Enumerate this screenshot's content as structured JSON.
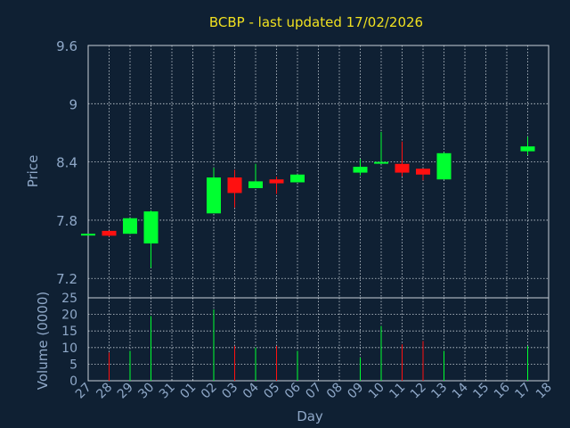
{
  "chart_data": {
    "type": "candlestick",
    "title": "BCBP - last updated 17/02/2026",
    "xlabel": "Day",
    "price_ylabel": "Price",
    "volume_ylabel": "Volume (0000)",
    "x_ticks": [
      "27",
      "28",
      "29",
      "30",
      "31",
      "01",
      "02",
      "03",
      "04",
      "05",
      "06",
      "07",
      "08",
      "09",
      "10",
      "11",
      "12",
      "13",
      "14",
      "15",
      "16",
      "17",
      "18"
    ],
    "price_ylim": [
      7.0,
      9.6
    ],
    "price_yticks": [
      "9.6",
      "9",
      "8.4",
      "7.8",
      "7.2"
    ],
    "volume_ylim": [
      0,
      25
    ],
    "volume_yticks": [
      "25",
      "20",
      "15",
      "10",
      "5",
      "0"
    ],
    "grid": true,
    "up_color": "#00ff30",
    "down_color": "#ff1010",
    "candles": [
      {
        "day": "27",
        "open": 7.65,
        "high": 7.66,
        "low": 7.65,
        "close": 7.66
      },
      {
        "day": "28",
        "open": 7.69,
        "high": 7.69,
        "low": 7.63,
        "close": 7.64
      },
      {
        "day": "29",
        "open": 7.66,
        "high": 7.82,
        "low": 7.66,
        "close": 7.82
      },
      {
        "day": "30",
        "open": 7.56,
        "high": 7.9,
        "low": 7.31,
        "close": 7.89
      },
      {
        "day": "02",
        "open": 7.87,
        "high": 8.34,
        "low": 7.87,
        "close": 8.24
      },
      {
        "day": "03",
        "open": 8.24,
        "high": 8.32,
        "low": 7.93,
        "close": 8.08
      },
      {
        "day": "04",
        "open": 8.13,
        "high": 8.38,
        "low": 8.13,
        "close": 8.2
      },
      {
        "day": "05",
        "open": 8.22,
        "high": 8.25,
        "low": 8.07,
        "close": 8.18
      },
      {
        "day": "06",
        "open": 8.19,
        "high": 8.27,
        "low": 8.19,
        "close": 8.27
      },
      {
        "day": "09",
        "open": 8.29,
        "high": 8.43,
        "low": 8.26,
        "close": 8.35
      },
      {
        "day": "10",
        "open": 8.39,
        "high": 8.71,
        "low": 8.38,
        "close": 8.4
      },
      {
        "day": "11",
        "open": 8.38,
        "high": 8.61,
        "low": 8.25,
        "close": 8.29
      },
      {
        "day": "12",
        "open": 8.33,
        "high": 8.33,
        "low": 8.21,
        "close": 8.27
      },
      {
        "day": "13",
        "open": 8.22,
        "high": 8.5,
        "low": 8.22,
        "close": 8.49
      },
      {
        "day": "17",
        "open": 8.51,
        "high": 8.66,
        "low": 8.47,
        "close": 8.56
      }
    ],
    "volume": [
      {
        "day": "28",
        "value": 8.5,
        "dir": "down"
      },
      {
        "day": "29",
        "value": 9,
        "dir": "up"
      },
      {
        "day": "30",
        "value": 19.5,
        "dir": "up"
      },
      {
        "day": "02",
        "value": 21.5,
        "dir": "up"
      },
      {
        "day": "03",
        "value": 10.5,
        "dir": "down"
      },
      {
        "day": "04",
        "value": 10,
        "dir": "up"
      },
      {
        "day": "05",
        "value": 10.5,
        "dir": "down"
      },
      {
        "day": "06",
        "value": 9,
        "dir": "up"
      },
      {
        "day": "09",
        "value": 7,
        "dir": "up"
      },
      {
        "day": "10",
        "value": 16.5,
        "dir": "up"
      },
      {
        "day": "11",
        "value": 11,
        "dir": "down"
      },
      {
        "day": "12",
        "value": 12,
        "dir": "down"
      },
      {
        "day": "13",
        "value": 9,
        "dir": "up"
      },
      {
        "day": "17",
        "value": 10.5,
        "dir": "up"
      }
    ]
  },
  "colors": {
    "background": "#0f2033",
    "grid": "#c8d0d8",
    "axis_text": "#8fa8c8",
    "title": "#f0e020"
  }
}
